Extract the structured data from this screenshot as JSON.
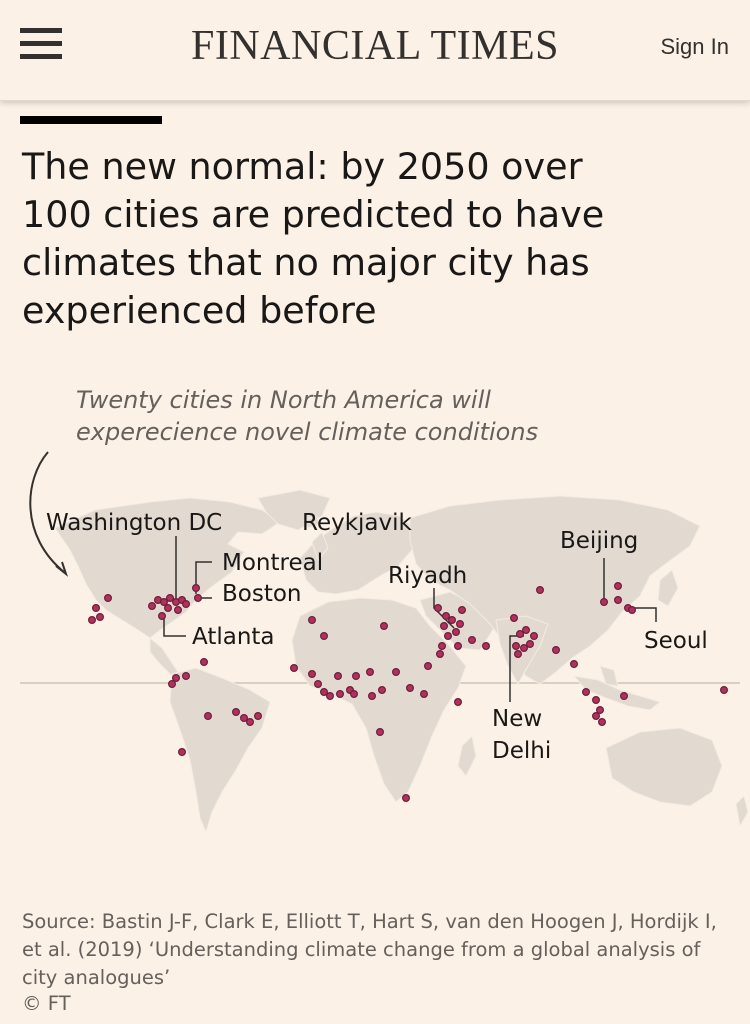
{
  "header": {
    "brand": "FINANCIAL TIMES",
    "sign_in_label": "Sign In"
  },
  "article": {
    "headline": "The new normal: by 2050 over 100 cities are predicted to have climates that no major city has experienced before",
    "annotation": "Twenty cities in North America will experecience novel climate conditions",
    "source": "Source: Bastin J-F, Clark E, Elliott T, Hart S, van den Hoogen J, Hordijk I, et al. (2019) ‘Understanding climate change from a global analysis of city analogues’",
    "copyright": "© FT"
  },
  "map": {
    "city_labels": {
      "washington": "Washington DC",
      "reykjavik": "Reykjavik",
      "montreal": "Montreal",
      "boston": "Boston",
      "atlanta": "Atlanta",
      "riyadh": "Riyadh",
      "beijing": "Beijing",
      "seoul": "Seoul",
      "new_delhi_line1": "New",
      "new_delhi_line2": "Delhi"
    },
    "colors": {
      "background": "#fbf1e6",
      "land": "#e2d9d0",
      "city_dot": "#b0325c",
      "city_dot_stroke": "#6e1e3a",
      "leader_line": "#33302e"
    }
  }
}
